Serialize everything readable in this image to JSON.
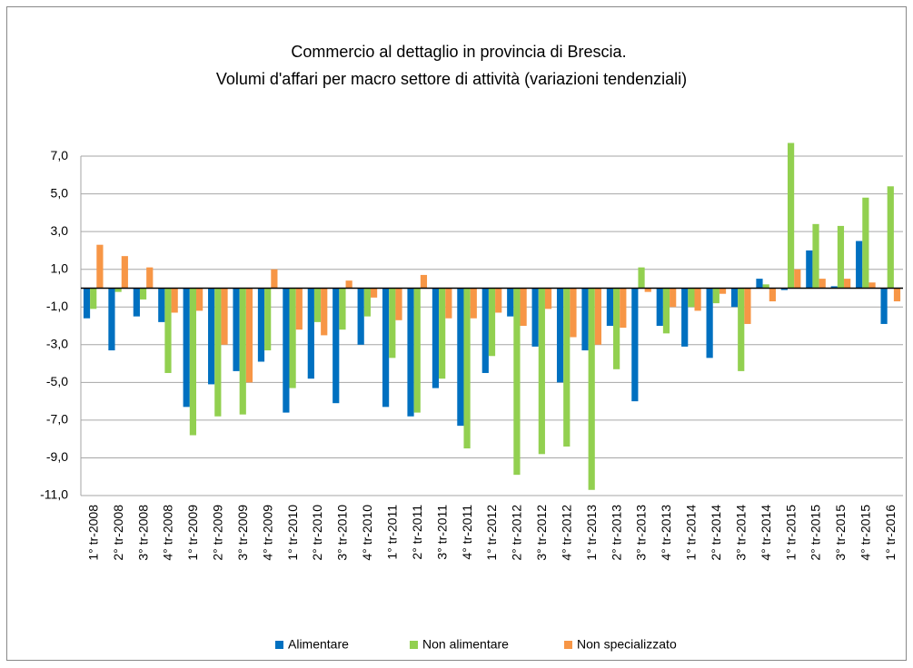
{
  "chart_data": {
    "type": "bar",
    "title": [
      "Commercio al dettaglio in provincia di Brescia.",
      "Volumi d'affari per macro settore di attività (variazioni tendenziali)"
    ],
    "categories": [
      "1° tr-2008",
      "2° tr-2008",
      "3° tr-2008",
      "4° tr-2008",
      "1° tr-2009",
      "2° tr-2009",
      "3° tr-2009",
      "4° tr-2009",
      "1° tr-2010",
      "2° tr-2010",
      "3° tr-2010",
      "4° tr-2010",
      "1° tr-2011",
      "2° tr-2011",
      "3° tr-2011",
      "4° tr-2011",
      "1° tr-2012",
      "2° tr-2012",
      "3° tr-2012",
      "4° tr-2012",
      "1° tr-2013",
      "2° tr-2013",
      "3° tr-2013",
      "4° tr-2013",
      "1° tr-2014",
      "2° tr-2014",
      "3° tr-2014",
      "4° tr-2014",
      "1° tr-2015",
      "2° tr-2015",
      "3° tr-2015",
      "4° tr-2015",
      "1° tr-2016"
    ],
    "series": [
      {
        "name": "Alimentare",
        "color": "#0070c0",
        "values": [
          -1.6,
          -3.3,
          -1.5,
          -1.8,
          -6.3,
          -5.1,
          -4.4,
          -3.9,
          -6.6,
          -4.8,
          -6.1,
          -3.0,
          -6.3,
          -6.8,
          -5.3,
          -7.3,
          -4.5,
          -1.5,
          -3.1,
          -5.0,
          -3.3,
          -2.0,
          -6.0,
          -2.0,
          -3.1,
          -3.7,
          -1.0,
          0.5,
          -0.1,
          2.0,
          0.1,
          2.5,
          -1.9
        ]
      },
      {
        "name": "Non alimentare",
        "color": "#92d050",
        "values": [
          -1.1,
          -0.2,
          -0.6,
          -4.5,
          -7.8,
          -6.8,
          -6.7,
          -3.3,
          -5.3,
          -1.8,
          -2.2,
          -1.5,
          -3.7,
          -6.6,
          -4.8,
          -8.5,
          -3.6,
          -9.9,
          -8.8,
          -8.4,
          -10.7,
          -4.3,
          1.1,
          -2.4,
          -1.0,
          -0.8,
          -4.4,
          0.2,
          7.7,
          3.4,
          3.3,
          4.8,
          5.4
        ]
      },
      {
        "name": "Non specializzato",
        "color": "#f79646",
        "values": [
          2.3,
          1.7,
          1.1,
          -1.3,
          -1.2,
          -3.0,
          -5.0,
          1.0,
          -2.2,
          -2.5,
          0.4,
          -0.5,
          -1.7,
          0.7,
          -1.6,
          -1.6,
          -1.3,
          -2.0,
          -1.1,
          -2.6,
          -3.0,
          -2.1,
          -0.2,
          -1.0,
          -1.2,
          -0.3,
          -1.9,
          -0.7,
          1.0,
          0.5,
          0.5,
          0.3,
          -0.7
        ]
      }
    ],
    "ylim": [
      -11,
      9
    ],
    "yticks": [
      {
        "value": 7,
        "label": "7,0"
      },
      {
        "value": 5,
        "label": "5,0"
      },
      {
        "value": 3,
        "label": "3,0"
      },
      {
        "value": 1,
        "label": "1,0"
      },
      {
        "value": -1,
        "label": "-1,0"
      },
      {
        "value": -3,
        "label": "-3,0"
      },
      {
        "value": -5,
        "label": "-5,0"
      },
      {
        "value": -7,
        "label": "-7,0"
      },
      {
        "value": -9,
        "label": "-9,0"
      },
      {
        "value": -11,
        "label": "-11,0"
      }
    ],
    "grid": true,
    "legend": "bottom"
  }
}
